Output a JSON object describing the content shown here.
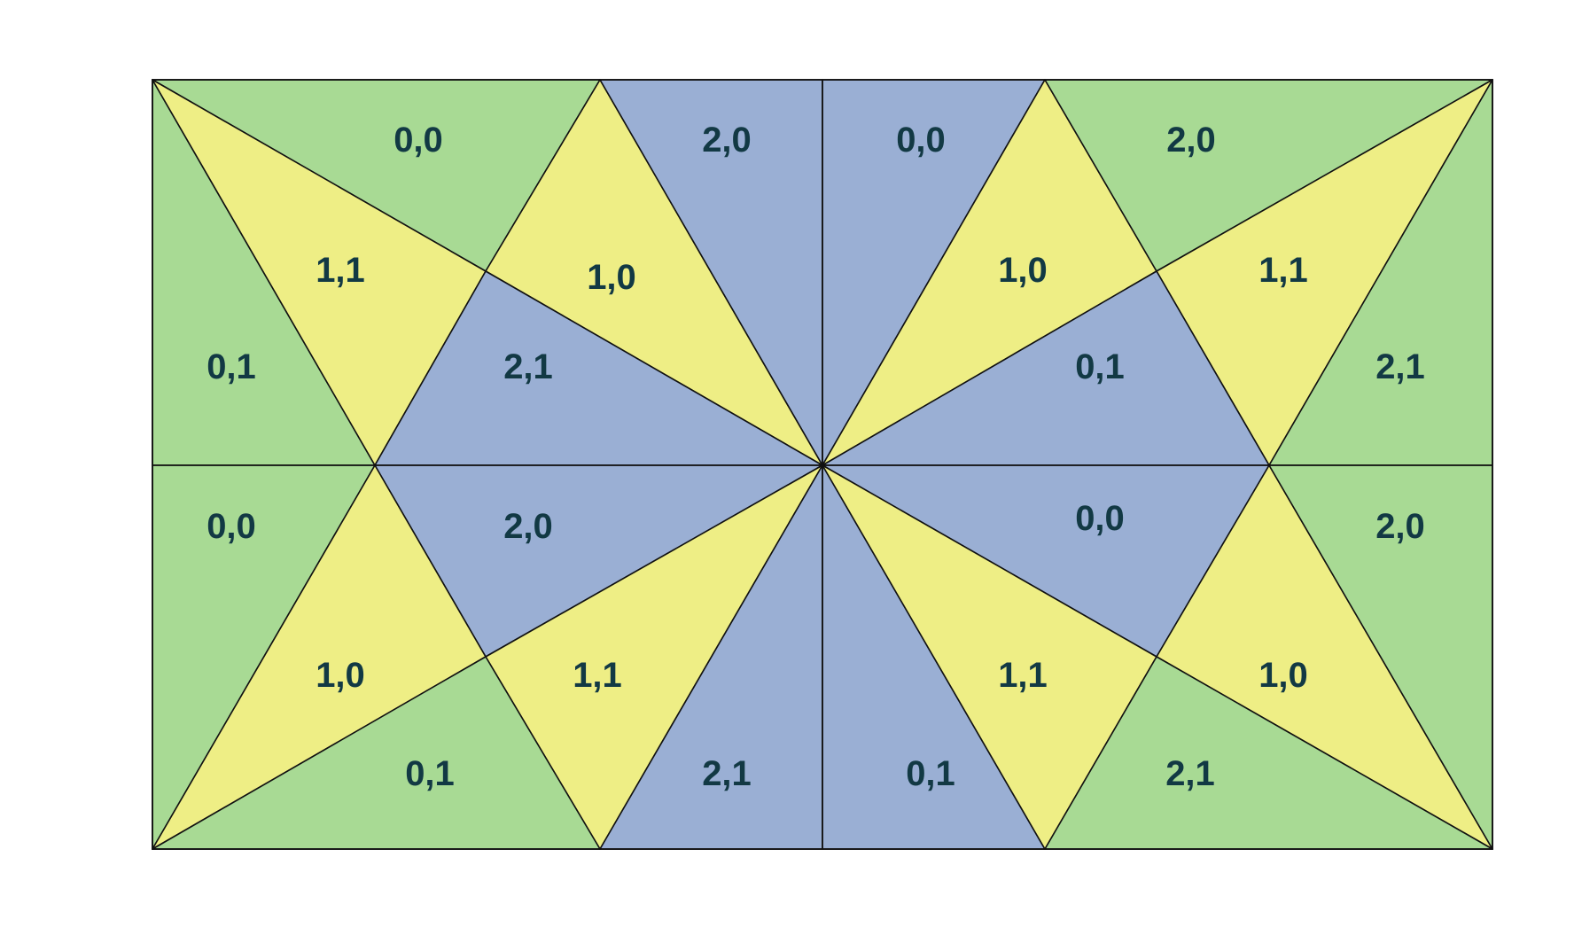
{
  "colors": {
    "green": "#a8da94",
    "yellow": "#eeee85",
    "blue": "#9aafd4",
    "stroke": "#111111",
    "label": "#123944"
  },
  "labels": {
    "tl_outer_top": "0,0",
    "tl_outer_left": "0,1",
    "tl_inner_diag": "1,1",
    "tl_inner_top": "1,0",
    "tl_inner_center": "2,1",
    "top_center_left": "2,0",
    "top_center_right": "0,0",
    "tr_inner_top": "1,0",
    "tr_outer_top": "2,0",
    "tr_inner_diag": "1,1",
    "tr_inner_center": "0,1",
    "tr_outer_right": "2,1",
    "bl_outer_left": "0,0",
    "bl_inner_center": "2,0",
    "bl_inner_diag": "1,0",
    "bl_inner_bottom": "1,1",
    "bl_outer_bottom": "0,1",
    "bottom_center_left": "2,1",
    "bottom_center_right": "0,1",
    "br_inner_center": "0,0",
    "br_outer_right": "2,0",
    "br_inner_bottom": "1,1",
    "br_inner_diag": "1,0",
    "br_outer_bottom": "2,1"
  }
}
